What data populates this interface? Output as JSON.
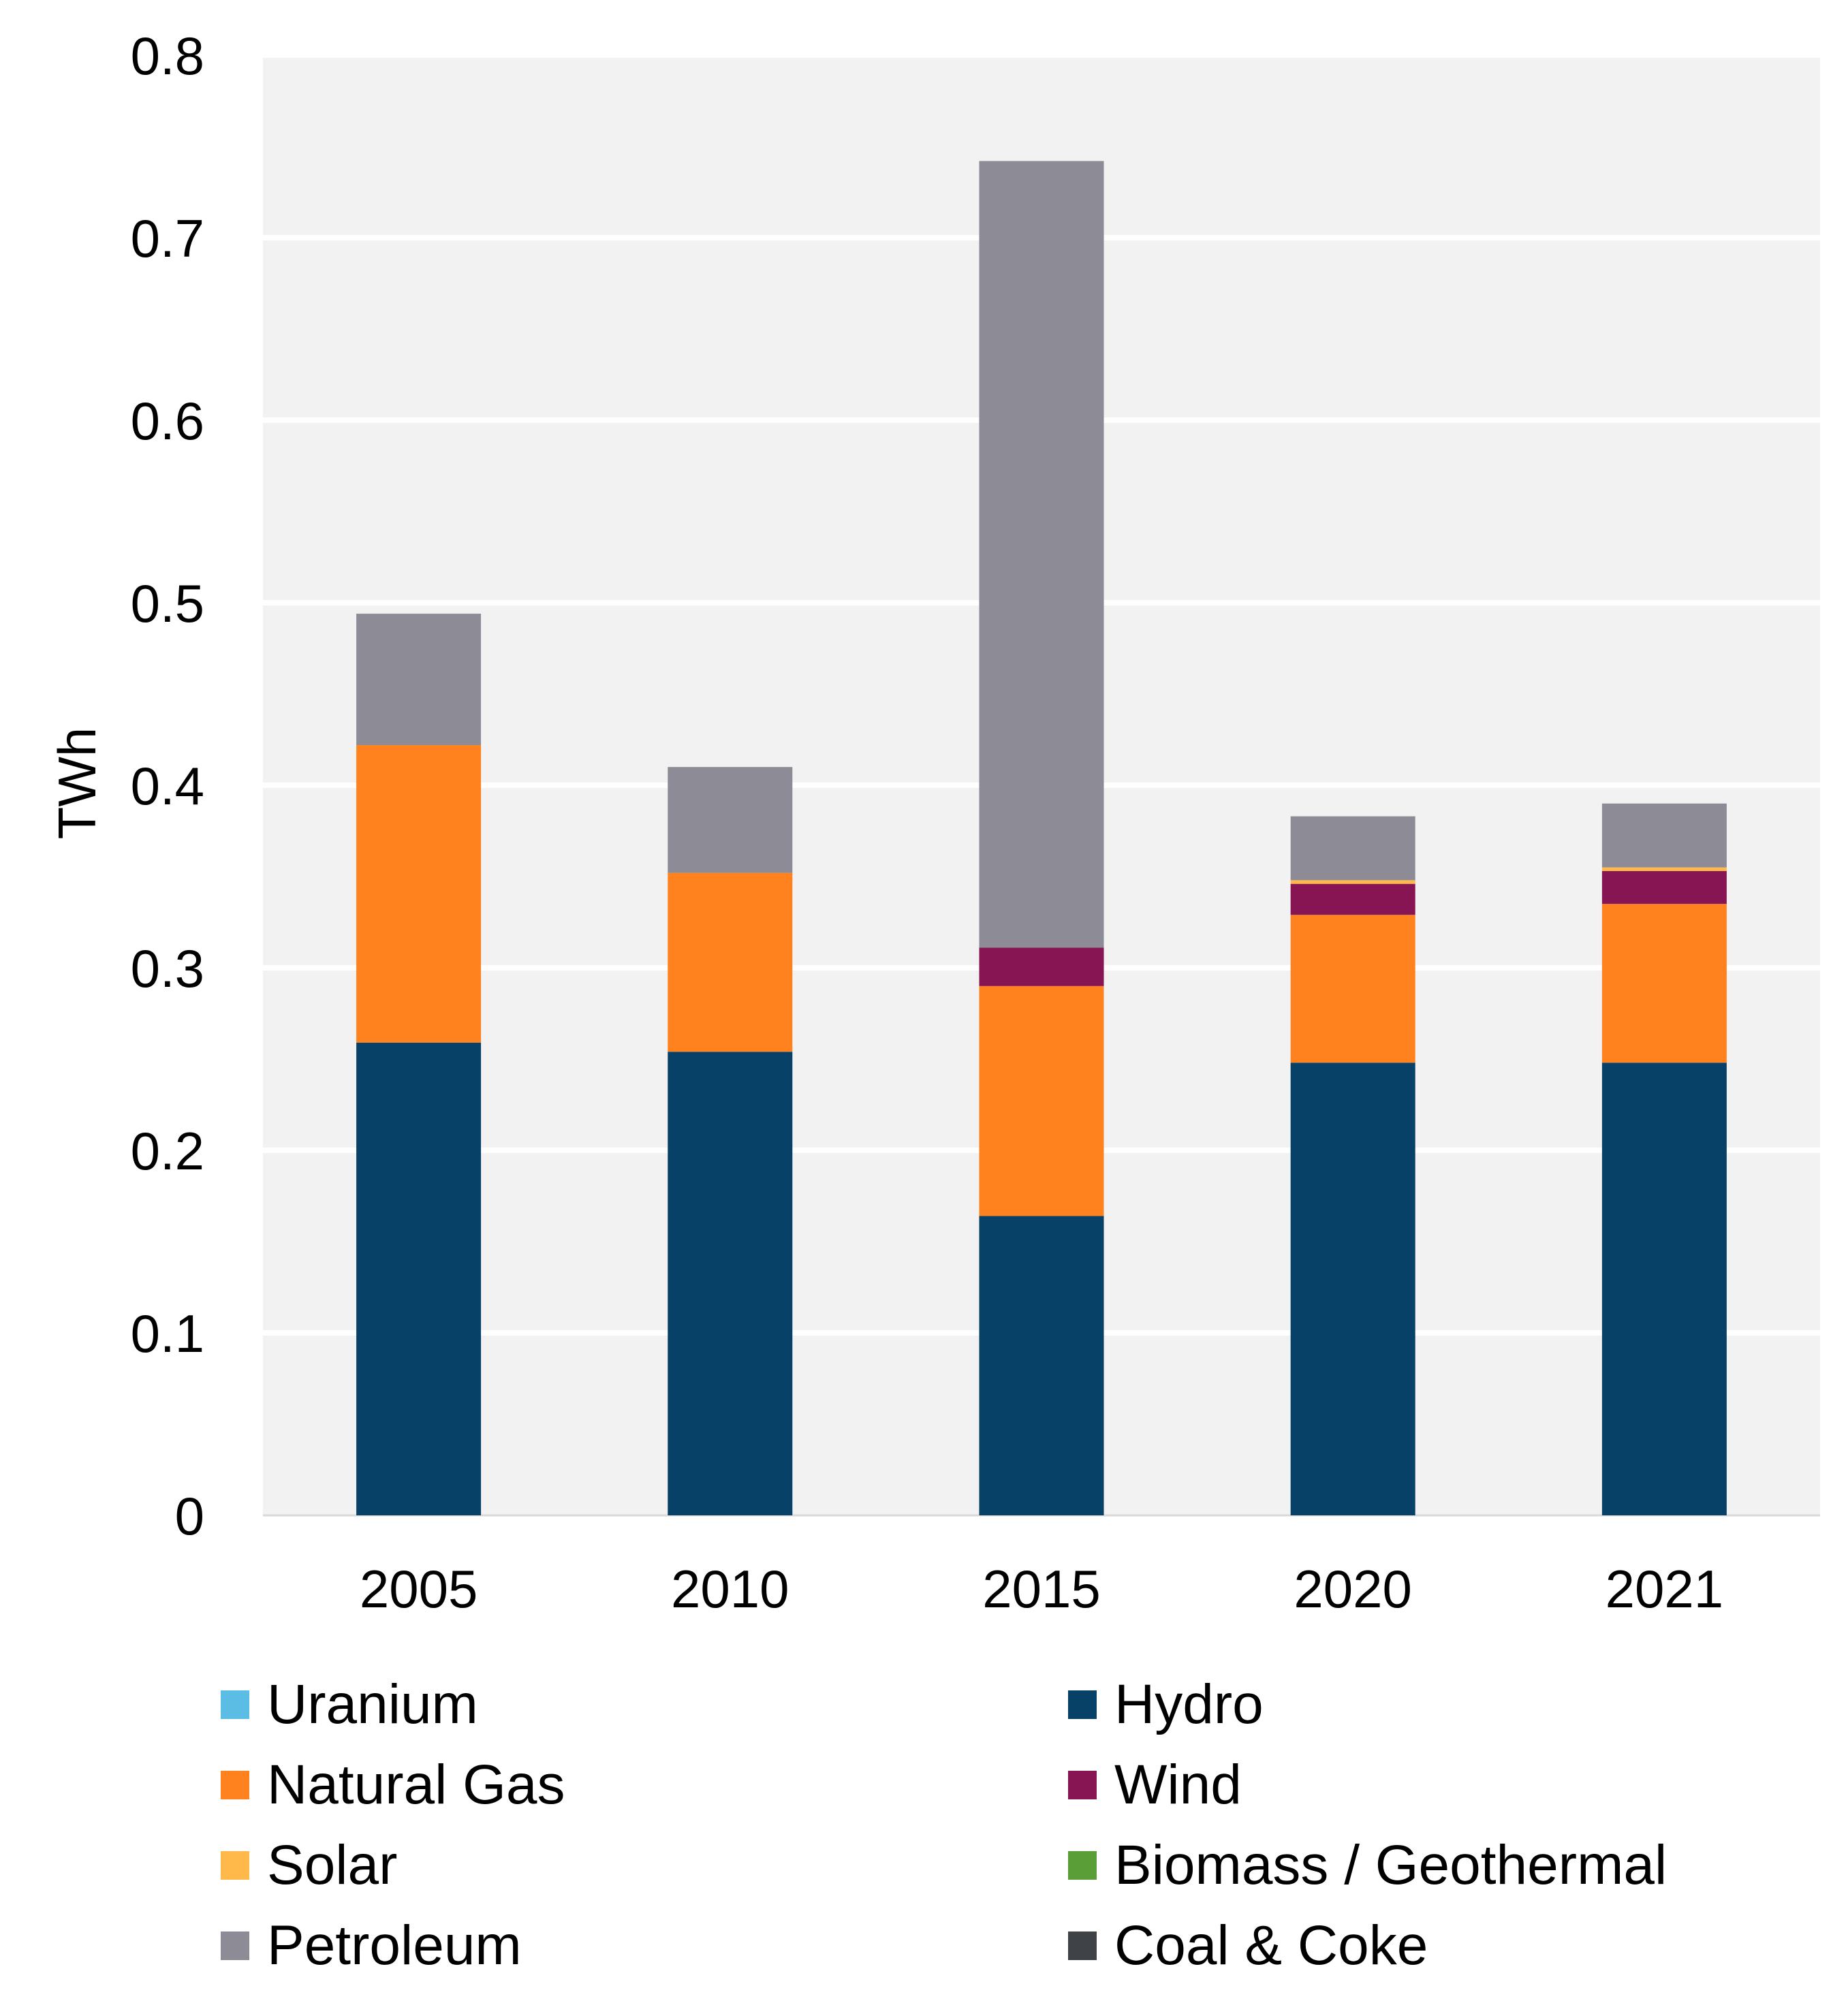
{
  "chart_data": {
    "type": "bar",
    "stacked": true,
    "title": "",
    "xlabel": "",
    "ylabel": "TWh",
    "ylim": [
      0,
      0.8
    ],
    "yticks": [
      "0",
      "0.1",
      "0.2",
      "0.3",
      "0.4",
      "0.5",
      "0.6",
      "0.7",
      "0.8"
    ],
    "grid": true,
    "legend_placement": "bottom",
    "categories": [
      "2005",
      "2010",
      "2015",
      "2020",
      "2021"
    ],
    "series": [
      {
        "name": "Uranium",
        "color": "#5bbde4",
        "values": [
          0,
          0,
          0,
          0,
          0
        ]
      },
      {
        "name": "Hydro",
        "color": "#084168",
        "values": [
          0.259,
          0.254,
          0.164,
          0.248,
          0.248
        ]
      },
      {
        "name": "Natural Gas",
        "color": "#ff821e",
        "values": [
          0.163,
          0.098,
          0.126,
          0.081,
          0.087
        ]
      },
      {
        "name": "Wind",
        "color": "#871453",
        "values": [
          0,
          0,
          0.021,
          0.017,
          0.018
        ]
      },
      {
        "name": "Solar",
        "color": "#ffb94a",
        "values": [
          0,
          0,
          0,
          0.002,
          0.002
        ]
      },
      {
        "name": "Biomass / Geothermal",
        "color": "#5a9e37",
        "values": [
          0,
          0,
          0,
          0,
          0
        ]
      },
      {
        "name": "Petroleum",
        "color": "#8d8c96",
        "values": [
          0.072,
          0.058,
          0.431,
          0.035,
          0.035
        ]
      },
      {
        "name": "Coal & Coke",
        "color": "#3f4246",
        "values": [
          0,
          0,
          0,
          0,
          0
        ]
      }
    ],
    "stack_order": [
      "Hydro",
      "Natural Gas",
      "Wind",
      "Solar",
      "Petroleum",
      "Uranium",
      "Biomass / Geothermal",
      "Coal & Coke"
    ],
    "legend_order": [
      "Uranium",
      "Hydro",
      "Natural Gas",
      "Wind",
      "Solar",
      "Biomass / Geothermal",
      "Petroleum",
      "Coal & Coke"
    ],
    "plot_background": "#f2f2f2"
  }
}
